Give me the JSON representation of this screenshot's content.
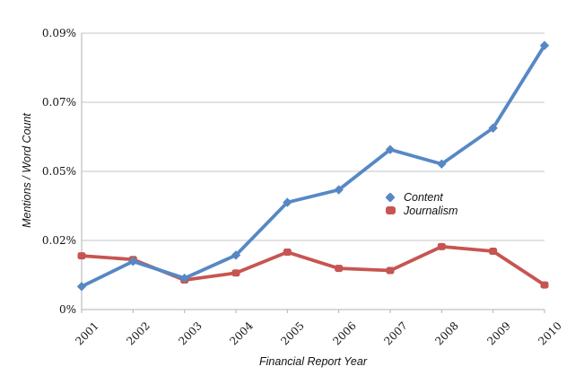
{
  "chart_data": {
    "type": "line",
    "title": "",
    "xlabel": "Financial Report Year",
    "ylabel": "Mentions / Word Count",
    "categories": [
      "2001",
      "2002",
      "2003",
      "2004",
      "2005",
      "2006",
      "2007",
      "2008",
      "2009",
      "2010"
    ],
    "series": [
      {
        "name": "Content",
        "color": "#5788C5",
        "marker": "diamond",
        "values": [
          0.0075,
          0.0157,
          0.0102,
          0.0177,
          0.0349,
          0.039,
          0.0521,
          0.0474,
          0.0591,
          0.086
        ]
      },
      {
        "name": "Journalism",
        "color": "#C65551",
        "marker": "rounded-square",
        "values": [
          0.0175,
          0.0163,
          0.0096,
          0.0119,
          0.0187,
          0.0134,
          0.0127,
          0.0205,
          0.019,
          0.008
        ]
      }
    ],
    "y_axis": {
      "min": 0,
      "max": 0.09,
      "unit": "percent",
      "tick_labels": [
        "0%",
        "0.02%",
        "0.05%",
        "0.07%",
        "0.09%"
      ],
      "tick_values": [
        0,
        0.0225,
        0.045,
        0.0675,
        0.09
      ]
    },
    "x_axis": {
      "tick_labels_rotation_deg": -45
    },
    "grid": "horizontal",
    "legend_position": "inside-right"
  },
  "colors": {
    "grid": "#C6C6C6",
    "axis": "#B2B2B2",
    "text": "#111111",
    "background": "#FFFFFF"
  }
}
